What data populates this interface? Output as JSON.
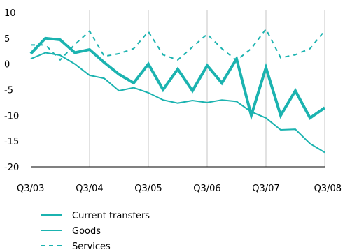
{
  "chart_data": {
    "type": "line",
    "title": "",
    "xlabel": "",
    "ylabel": "",
    "ylim": [
      -20,
      10
    ],
    "y_ticks": [
      "10",
      "5",
      "0",
      "-5",
      "-10",
      "-15",
      "-20"
    ],
    "x_ticks": [
      "Q3/03",
      "Q3/04",
      "Q3/05",
      "Q3/06",
      "Q3/07",
      "Q3/08"
    ],
    "grid": "vertical lines at x tick labels",
    "legend": "bottom",
    "x": [
      "Q3/03",
      "Q4/03",
      "Q1/04",
      "Q2/04",
      "Q3/04",
      "Q4/04",
      "Q1/05",
      "Q2/05",
      "Q3/05",
      "Q4/05",
      "Q1/06",
      "Q2/06",
      "Q3/06",
      "Q4/06",
      "Q1/07",
      "Q2/07",
      "Q3/07",
      "Q4/07",
      "Q1/08",
      "Q2/08",
      "Q3/08"
    ],
    "series": [
      {
        "name": "Current transfers",
        "color": "#1bb3b0",
        "style": "thick solid",
        "values": [
          2.0,
          5.0,
          4.7,
          2.2,
          2.8,
          0.3,
          -2.0,
          -3.7,
          0.0,
          -5.0,
          -1.0,
          -5.2,
          -0.3,
          -3.7,
          1.0,
          -10.0,
          -0.7,
          -10.0,
          -5.2,
          -10.5,
          -8.5
        ]
      },
      {
        "name": "Goods",
        "color": "#1bb3b0",
        "style": "thin solid",
        "values": [
          1.0,
          2.2,
          1.7,
          0.0,
          -2.2,
          -2.8,
          -5.2,
          -4.6,
          -5.6,
          -7.0,
          -7.6,
          -7.1,
          -7.5,
          -7.0,
          -7.3,
          -9.3,
          -10.5,
          -12.8,
          -12.7,
          -15.5,
          -17.2
        ]
      },
      {
        "name": "Services",
        "color": "#1bb3b0",
        "style": "dashed",
        "values": [
          3.7,
          3.7,
          0.8,
          3.8,
          6.4,
          1.5,
          2.0,
          3.0,
          6.3,
          1.8,
          0.8,
          3.3,
          5.8,
          3.0,
          0.7,
          3.0,
          6.8,
          1.2,
          1.8,
          3.0,
          6.5
        ]
      }
    ]
  }
}
